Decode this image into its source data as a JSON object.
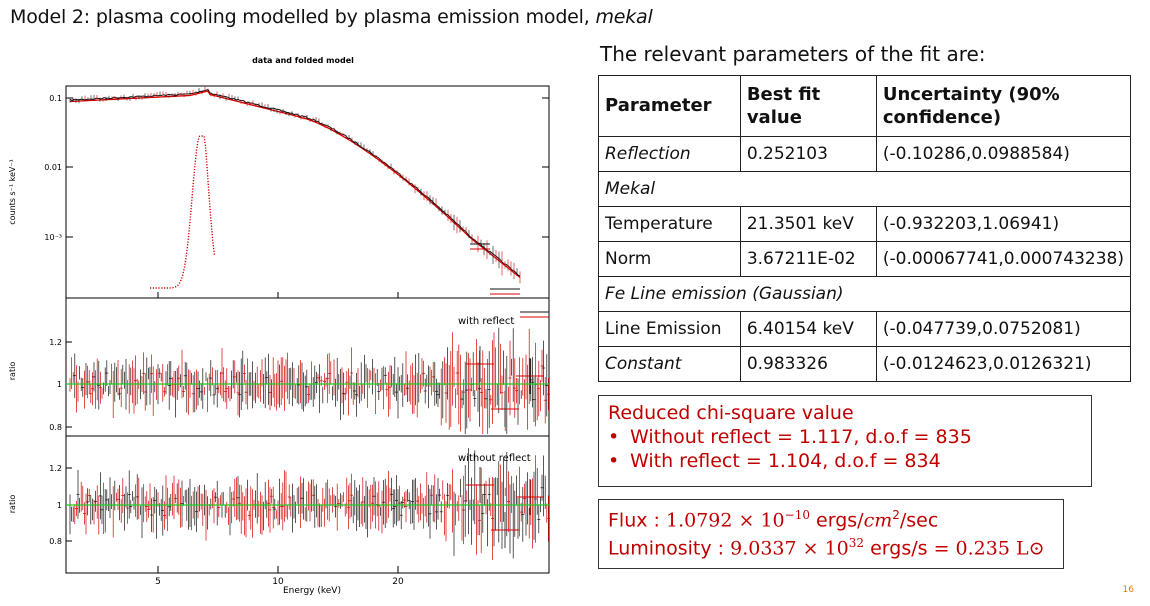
{
  "title": {
    "main": "Model 2: plasma cooling modelled by plasma emission model,",
    "italic": "mekal"
  },
  "plot": {
    "top_title": "data and folded model",
    "panel1_ylabel": "counts s⁻¹ keV⁻¹",
    "panel1_ticks": [
      "0.1",
      "0.01",
      "10⁻³"
    ],
    "panel2_ylabel": "ratio",
    "panel2_ticks": [
      "1.2",
      "1",
      "0.8"
    ],
    "panel2_label": "with reflect",
    "panel3_ylabel": "ratio",
    "panel3_ticks": [
      "1.2",
      "1",
      "0.8"
    ],
    "panel3_label": "without reflect",
    "x_ticks": [
      "5",
      "10",
      "20"
    ],
    "xlabel": "Energy (keV)",
    "colors": {
      "data_black": "#111111",
      "model_red": "#d40000",
      "unity_line": "#22cc22"
    }
  },
  "params": {
    "heading": "The relevant parameters of the fit are:",
    "headers": [
      "Parameter",
      "Best fit value",
      "Uncertainty (90% confidence)"
    ],
    "rows": [
      {
        "name": "Reflection",
        "value": "0.252103",
        "unc": "(-0.10286,0.0988584)"
      },
      {
        "name": "Temperature",
        "value": "21.3501 keV",
        "unc": "(-0.932203,1.06941)"
      },
      {
        "name": "Norm",
        "value": "3.67211E-02",
        "unc": "(-0.00067741,0.000743238)"
      },
      {
        "name": "Line Emission",
        "value": "6.40154 keV",
        "unc": "(-0.047739,0.0752081)"
      },
      {
        "name": "Constant",
        "value": "0.983326",
        "unc": "(-0.0124623,0.0126321)"
      }
    ],
    "section_mekal": "Mekal",
    "section_fe": "Fe Line emission (Gaussian)"
  },
  "chi": {
    "title": "Reduced chi-square value",
    "bullet": "•",
    "without": "Without reflect = 1.117, d.o.f = 835",
    "with": "With reflect = 1.104, d.o.f = 834"
  },
  "flux": {
    "flux_label": "Flux : ",
    "flux_value": "1.0792 × 10",
    "flux_exp": "−10",
    "flux_unit_a": " ergs/",
    "flux_unit_cm": "cm",
    "flux_unit_exp": "2",
    "flux_unit_b": "/sec",
    "lum_label": "Luminosity : ",
    "lum_value": "9.0337 × 10",
    "lum_exp": "32",
    "lum_unit": " ergs/s = ",
    "lum_solar": "0.235 L⊙"
  },
  "page_number": "16"
}
